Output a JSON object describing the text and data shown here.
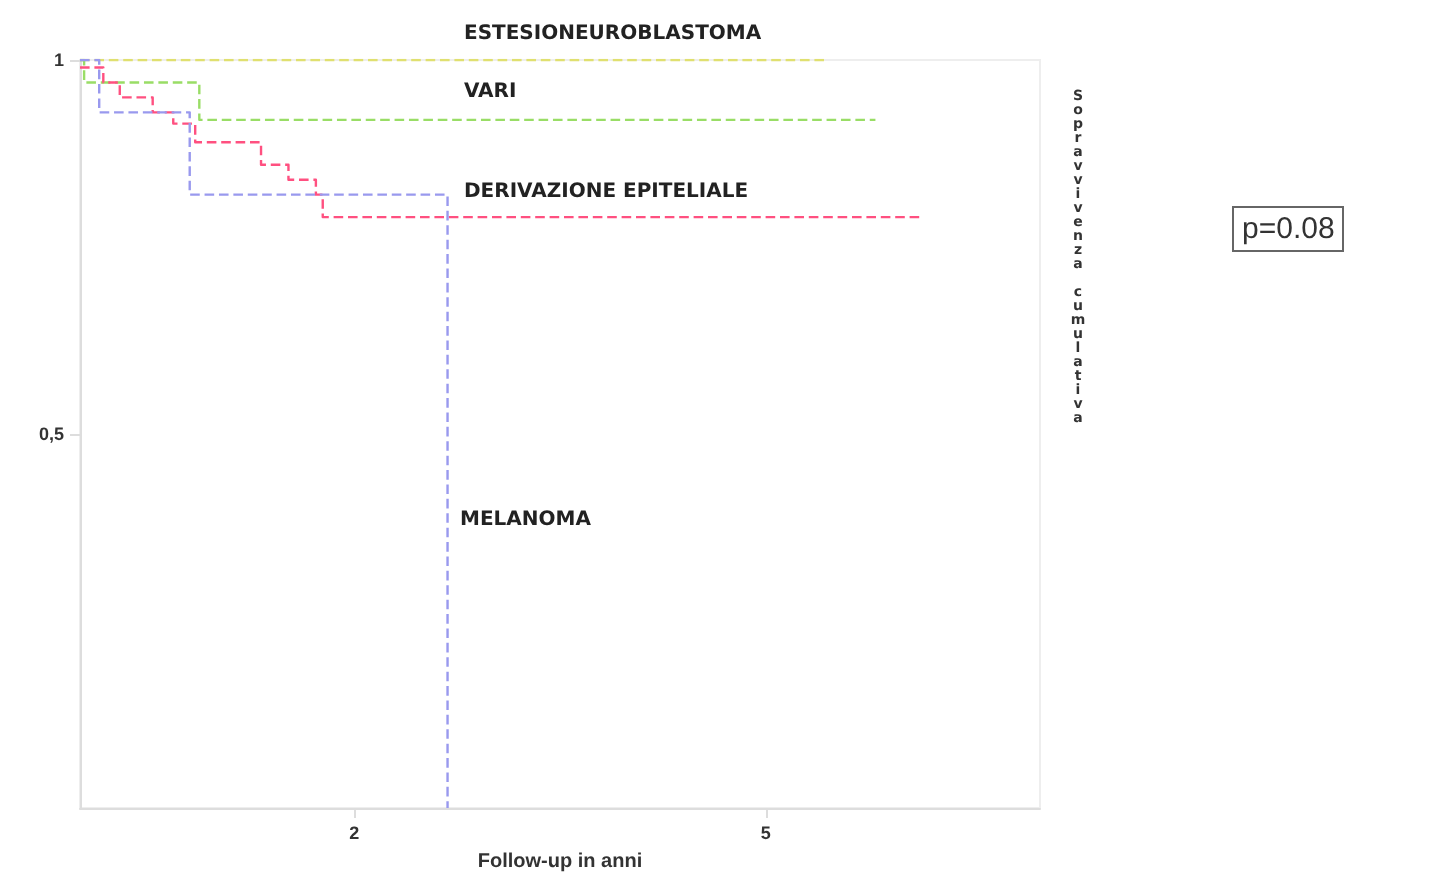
{
  "chart_data": {
    "type": "step",
    "xlabel": "Follow-up in anni",
    "ylabel": "Sopravvivenza cumulativa",
    "annotations": [
      "p=0.08"
    ],
    "xlim": [
      0,
      7
    ],
    "xticks": [
      2,
      5
    ],
    "ylim": [
      0,
      1
    ],
    "yticks": [
      {
        "value": 0.5,
        "label": "0,5"
      },
      1
    ],
    "grid": false,
    "legend": false,
    "marker": "none",
    "line_style": "dashed",
    "series": [
      {
        "name": "ESTESIONEUROBLASTOMA",
        "color": "#e0e070",
        "x": [
          0,
          5.46
        ],
        "values": [
          1,
          1
        ]
      },
      {
        "name": "VARI",
        "color": "#99dd66",
        "x": [
          0,
          0.03,
          0.87,
          5.8
        ],
        "values": [
          1,
          0.97,
          0.92,
          0.92
        ]
      },
      {
        "name": "DERIVAZIONE EPITELIALE",
        "color": "#ff5080",
        "x": [
          0,
          0.17,
          0.29,
          0.53,
          0.68,
          0.84,
          1.32,
          1.52,
          1.72,
          1.77,
          6.13
        ],
        "values": [
          0.99,
          0.97,
          0.95,
          0.93,
          0.915,
          0.89,
          0.86,
          0.84,
          0.82,
          0.79,
          0.79
        ]
      },
      {
        "name": "MELANOMA",
        "color": "#9999ee",
        "x": [
          0,
          0.14,
          0.8,
          2.68
        ],
        "values": [
          1,
          0.93,
          0.82,
          0
        ]
      }
    ]
  }
}
